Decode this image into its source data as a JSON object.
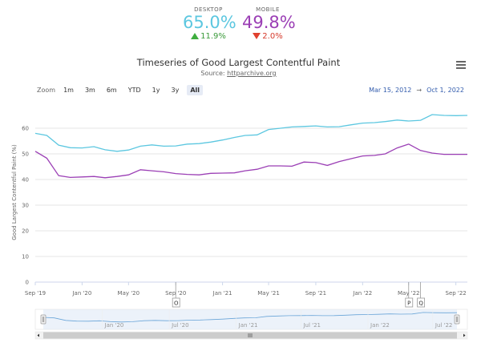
{
  "kpis": {
    "desktop": {
      "label": "DESKTOP",
      "value": "65.0%",
      "change": "11.9%",
      "direction": "up",
      "color": "#5cc7e0"
    },
    "mobile": {
      "label": "MOBILE",
      "value": "49.8%",
      "change": "2.0%",
      "direction": "down",
      "color": "#9b3fb5"
    }
  },
  "header": {
    "title": "Timeseries of Good Largest Contentful Paint",
    "source_prefix": "Source: ",
    "source_link": "httparchive.org",
    "menu_icon": "hamburger-icon"
  },
  "zoom": {
    "label": "Zoom",
    "buttons": [
      "1m",
      "3m",
      "6m",
      "YTD",
      "1y",
      "3y",
      "All"
    ],
    "active": "All"
  },
  "range": {
    "from": "Mar 15, 2012",
    "to": "Oct 1, 2022",
    "arrow": "→"
  },
  "chart_data": {
    "type": "line",
    "title": "Timeseries of Good Largest Contentful Paint",
    "ylabel": "Good Largest Contentful Paint (%)",
    "ylim": [
      0,
      70
    ],
    "yticks": [
      0,
      10,
      20,
      30,
      40,
      50,
      60
    ],
    "xlim": [
      "2019-09-01",
      "2022-10-01"
    ],
    "xticks": [
      {
        "date": "2019-09-01",
        "label": "Sep '19"
      },
      {
        "date": "2020-01-01",
        "label": "Jan '20"
      },
      {
        "date": "2020-05-01",
        "label": "May '20"
      },
      {
        "date": "2020-09-01",
        "label": "Sep '20"
      },
      {
        "date": "2021-01-01",
        "label": "Jan '21"
      },
      {
        "date": "2021-05-01",
        "label": "May '21"
      },
      {
        "date": "2021-09-01",
        "label": "Sep '21"
      },
      {
        "date": "2022-01-01",
        "label": "Jan '22"
      },
      {
        "date": "2022-05-01",
        "label": "May '22"
      },
      {
        "date": "2022-09-01",
        "label": "Sep '22"
      }
    ],
    "x": [
      "2019-09-01",
      "2019-10-01",
      "2019-11-01",
      "2019-12-01",
      "2020-01-01",
      "2020-02-01",
      "2020-03-01",
      "2020-04-01",
      "2020-05-01",
      "2020-06-01",
      "2020-07-01",
      "2020-08-01",
      "2020-09-01",
      "2020-10-01",
      "2020-11-01",
      "2020-12-01",
      "2021-01-01",
      "2021-02-01",
      "2021-03-01",
      "2021-04-01",
      "2021-05-01",
      "2021-06-01",
      "2021-07-01",
      "2021-08-01",
      "2021-09-01",
      "2021-10-01",
      "2021-11-01",
      "2021-12-01",
      "2022-01-01",
      "2022-02-01",
      "2022-03-01",
      "2022-04-01",
      "2022-05-01",
      "2022-06-01",
      "2022-07-01",
      "2022-08-01",
      "2022-09-01",
      "2022-10-01"
    ],
    "series": [
      {
        "name": "Desktop",
        "color": "#5cc7e0",
        "values": [
          58.0,
          57.2,
          53.4,
          52.4,
          52.3,
          52.8,
          51.6,
          51.0,
          51.5,
          53.0,
          53.5,
          53.0,
          53.1,
          53.8,
          54.0,
          54.6,
          55.4,
          56.4,
          57.2,
          57.4,
          59.5,
          60.0,
          60.5,
          60.7,
          60.9,
          60.5,
          60.6,
          61.3,
          62.0,
          62.2,
          62.6,
          63.2,
          62.8,
          63.1,
          65.3,
          65.0,
          64.9,
          65.0
        ]
      },
      {
        "name": "Mobile",
        "color": "#9b3fb5",
        "values": [
          51.0,
          48.3,
          41.5,
          40.8,
          41.0,
          41.2,
          40.7,
          41.2,
          41.8,
          43.8,
          43.4,
          43.0,
          42.3,
          42.0,
          41.8,
          42.4,
          42.5,
          42.6,
          43.4,
          44.0,
          45.3,
          45.3,
          45.2,
          46.8,
          46.6,
          45.5,
          47.0,
          48.1,
          49.2,
          49.4,
          50.0,
          52.3,
          53.8,
          51.3,
          50.3,
          49.8,
          49.8,
          49.8
        ]
      }
    ],
    "flags": [
      {
        "date": "2020-09-01",
        "label": "O"
      },
      {
        "date": "2022-05-01",
        "label": "P"
      },
      {
        "date": "2022-06-01",
        "label": "Q"
      }
    ]
  },
  "navigator": {
    "ticks": [
      {
        "frac": 0.155,
        "label": "Jan '20"
      },
      {
        "frac": 0.31,
        "label": "Jul '20"
      },
      {
        "frac": 0.465,
        "label": "Jan '21"
      },
      {
        "frac": 0.615,
        "label": "Jul '21"
      },
      {
        "frac": 0.77,
        "label": "Jan '22"
      },
      {
        "frac": 0.92,
        "label": "Jul '22"
      }
    ]
  },
  "colors": {
    "grid": "#e6e6e6",
    "axis": "#ccd6eb",
    "navigator_fill": "#dde8f5",
    "navigator_line": "#6aa5d8"
  }
}
